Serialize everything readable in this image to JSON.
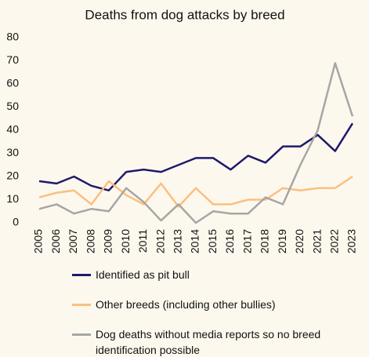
{
  "chart_data": {
    "type": "line",
    "title": "Deaths from dog attacks by breed",
    "categories": [
      "2005",
      "2006",
      "2007",
      "2008",
      "2009",
      "2010",
      "2011",
      "2012",
      "2013",
      "2014",
      "2015",
      "2016",
      "2017",
      "2018",
      "2019",
      "2020",
      "2021",
      "2022",
      "2023"
    ],
    "series": [
      {
        "name": "Identified as pit bull",
        "color": "#1f1a6b",
        "values": [
          18,
          17,
          20,
          16,
          14,
          22,
          23,
          22,
          25,
          28,
          28,
          23,
          29,
          26,
          33,
          33,
          38,
          31,
          43
        ]
      },
      {
        "name": "Other breeds (including other bullies)",
        "color": "#fbbf7f",
        "values": [
          11,
          13,
          14,
          8,
          18,
          12,
          8,
          17,
          7,
          15,
          8,
          8,
          10,
          10,
          15,
          14,
          15,
          15,
          20
        ]
      },
      {
        "name": "Dog deaths without media reports so no breed identification possible",
        "color": "#a6a6a6",
        "values": [
          6,
          8,
          4,
          6,
          5,
          15,
          9,
          1,
          8,
          0,
          5,
          4,
          4,
          11,
          8,
          25,
          40,
          69,
          46
        ]
      }
    ],
    "ylim": [
      0,
      80
    ],
    "yticks": [
      0,
      10,
      20,
      30,
      40,
      50,
      60,
      70,
      80
    ],
    "grid": false
  }
}
